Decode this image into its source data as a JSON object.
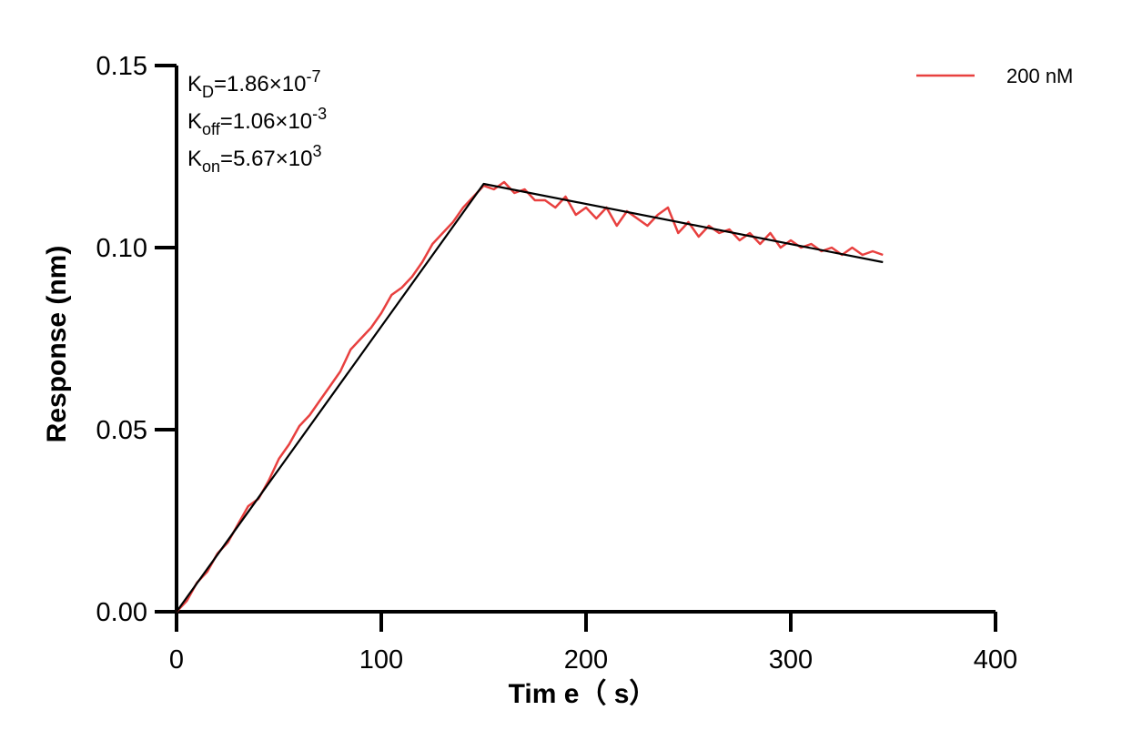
{
  "chart_data": {
    "type": "line",
    "xlabel": "Tim e（ s）",
    "ylabel": "Response (nm)",
    "xlim": [
      0,
      400
    ],
    "ylim": [
      0,
      0.15
    ],
    "x_ticks": [
      0,
      100,
      200,
      300,
      400
    ],
    "x_tick_labels": [
      "0",
      "100",
      "200",
      "300",
      "400"
    ],
    "y_ticks": [
      0,
      0.05,
      0.1,
      0.15
    ],
    "y_tick_labels": [
      "0.00",
      "0.05",
      "0.10",
      "0.15"
    ],
    "grid": false,
    "legend_position": "top-right",
    "annotations": [
      {
        "base": "K",
        "sub": "D",
        "main": "=1.86×10",
        "sup": "-7"
      },
      {
        "base": "K",
        "sub": "off",
        "main": "=1.06×10",
        "sup": "-3"
      },
      {
        "base": "K",
        "sub": "on",
        "main": "=5.67×10",
        "sup": "3"
      }
    ],
    "series": [
      {
        "name": "200 nM",
        "color": "#e8403f",
        "x": [
          0,
          5,
          10,
          15,
          20,
          25,
          30,
          35,
          40,
          45,
          50,
          55,
          60,
          65,
          70,
          75,
          80,
          85,
          90,
          95,
          100,
          105,
          110,
          115,
          120,
          125,
          130,
          135,
          140,
          145,
          150,
          155,
          160,
          165,
          170,
          175,
          180,
          185,
          190,
          195,
          200,
          205,
          210,
          215,
          220,
          225,
          230,
          235,
          240,
          245,
          250,
          255,
          260,
          265,
          270,
          275,
          280,
          285,
          290,
          295,
          300,
          305,
          310,
          315,
          320,
          325,
          330,
          335,
          340,
          345
        ],
        "y": [
          0.0,
          0.003,
          0.008,
          0.011,
          0.016,
          0.019,
          0.024,
          0.029,
          0.031,
          0.036,
          0.042,
          0.046,
          0.051,
          0.054,
          0.058,
          0.062,
          0.066,
          0.072,
          0.075,
          0.078,
          0.082,
          0.087,
          0.089,
          0.092,
          0.096,
          0.101,
          0.104,
          0.107,
          0.111,
          0.114,
          0.117,
          0.116,
          0.118,
          0.115,
          0.116,
          0.113,
          0.113,
          0.111,
          0.114,
          0.109,
          0.111,
          0.108,
          0.111,
          0.106,
          0.11,
          0.108,
          0.106,
          0.109,
          0.111,
          0.104,
          0.107,
          0.103,
          0.106,
          0.104,
          0.105,
          0.102,
          0.104,
          0.101,
          0.104,
          0.1,
          0.102,
          0.1,
          0.101,
          0.099,
          0.1,
          0.098,
          0.1,
          0.098,
          0.099,
          0.098
        ]
      },
      {
        "name": "",
        "color": "#000000",
        "x": [
          0,
          150,
          345
        ],
        "y": [
          0.0,
          0.1175,
          0.096
        ]
      }
    ]
  }
}
